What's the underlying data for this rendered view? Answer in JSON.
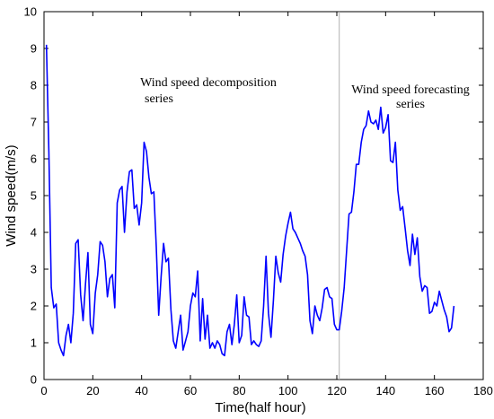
{
  "chart_data": {
    "type": "line",
    "title": "",
    "xlabel": "Time(half hour)",
    "ylabel": "Wind speed(m/s)",
    "xlim": [
      0,
      180
    ],
    "ylim": [
      0,
      10
    ],
    "xticks": [
      0,
      20,
      40,
      60,
      80,
      100,
      120,
      140,
      160,
      180
    ],
    "yticks": [
      0,
      1,
      2,
      3,
      4,
      5,
      6,
      7,
      8,
      9,
      10
    ],
    "grid": false,
    "divider_x": 121,
    "annotations": [
      {
        "lines": [
          "Wind speed decomposition",
          "series"
        ]
      },
      {
        "lines": [
          "Wind speed forecasting",
          "series"
        ]
      }
    ],
    "series": [
      {
        "color": "#0000ff",
        "x": [
          1,
          2,
          3,
          4,
          5,
          6,
          7,
          8,
          9,
          10,
          11,
          12,
          13,
          14,
          15,
          16,
          17,
          18,
          19,
          20,
          21,
          22,
          23,
          24,
          25,
          26,
          27,
          28,
          29,
          30,
          31,
          32,
          33,
          34,
          35,
          36,
          37,
          38,
          39,
          40,
          41,
          42,
          43,
          44,
          45,
          46,
          47,
          48,
          49,
          50,
          51,
          52,
          53,
          54,
          55,
          56,
          57,
          58,
          59,
          60,
          61,
          62,
          63,
          64,
          65,
          66,
          67,
          68,
          69,
          70,
          71,
          72,
          73,
          74,
          75,
          76,
          77,
          78,
          79,
          80,
          81,
          82,
          83,
          84,
          85,
          86,
          87,
          88,
          89,
          90,
          91,
          92,
          93,
          94,
          95,
          96,
          97,
          98,
          99,
          100,
          101,
          102,
          103,
          104,
          105,
          106,
          107,
          108,
          109,
          110,
          111,
          112,
          113,
          114,
          115,
          116,
          117,
          118,
          119,
          120,
          121,
          122,
          123,
          124,
          125,
          126,
          127,
          128,
          129,
          130,
          131,
          132,
          133,
          134,
          135,
          136,
          137,
          138,
          139,
          140,
          141,
          142,
          143,
          144,
          145,
          146,
          147,
          148,
          149,
          150,
          151,
          152,
          153,
          154,
          155,
          156,
          157,
          158,
          159,
          160,
          161,
          162,
          163,
          164,
          165,
          166,
          167,
          168
        ],
        "y": [
          9.1,
          6.2,
          2.5,
          1.95,
          2.05,
          1.0,
          0.8,
          0.65,
          1.2,
          1.5,
          1.0,
          1.8,
          3.7,
          3.8,
          2.3,
          1.6,
          2.6,
          3.45,
          1.5,
          1.25,
          2.35,
          2.85,
          3.75,
          3.65,
          3.2,
          2.25,
          2.75,
          2.85,
          1.95,
          4.8,
          5.15,
          5.25,
          4.0,
          5.1,
          5.65,
          5.7,
          4.65,
          4.75,
          4.2,
          4.8,
          6.45,
          6.2,
          5.5,
          5.05,
          5.1,
          3.6,
          1.75,
          2.8,
          3.7,
          3.2,
          3.3,
          1.9,
          1.05,
          0.85,
          1.3,
          1.75,
          0.8,
          1.05,
          1.3,
          2.0,
          2.35,
          2.25,
          2.95,
          1.05,
          2.2,
          1.1,
          1.75,
          0.85,
          1.0,
          0.85,
          1.05,
          0.95,
          0.7,
          0.65,
          1.3,
          1.5,
          0.95,
          1.5,
          2.3,
          1.0,
          1.2,
          2.25,
          1.75,
          1.7,
          0.95,
          1.05,
          0.95,
          0.9,
          1.05,
          2.0,
          3.35,
          1.8,
          1.15,
          2.15,
          3.35,
          2.9,
          2.65,
          3.4,
          3.9,
          4.25,
          4.55,
          4.1,
          4.0,
          3.85,
          3.7,
          3.5,
          3.35,
          2.85,
          1.6,
          1.25,
          2.0,
          1.75,
          1.6,
          1.95,
          2.45,
          2.5,
          2.25,
          2.2,
          1.5,
          1.35,
          1.35,
          1.85,
          2.5,
          3.5,
          4.5,
          4.55,
          5.1,
          5.85,
          5.85,
          6.45,
          6.8,
          6.9,
          7.3,
          7.0,
          6.95,
          7.05,
          6.8,
          7.4,
          6.7,
          6.85,
          7.2,
          5.95,
          5.9,
          6.45,
          5.15,
          4.6,
          4.7,
          4.1,
          3.5,
          3.1,
          3.95,
          3.4,
          3.85,
          2.8,
          2.4,
          2.55,
          2.5,
          1.8,
          1.85,
          2.1,
          2.0,
          2.4,
          2.15,
          1.9,
          1.7,
          1.3,
          1.4,
          2.0
        ]
      }
    ]
  }
}
